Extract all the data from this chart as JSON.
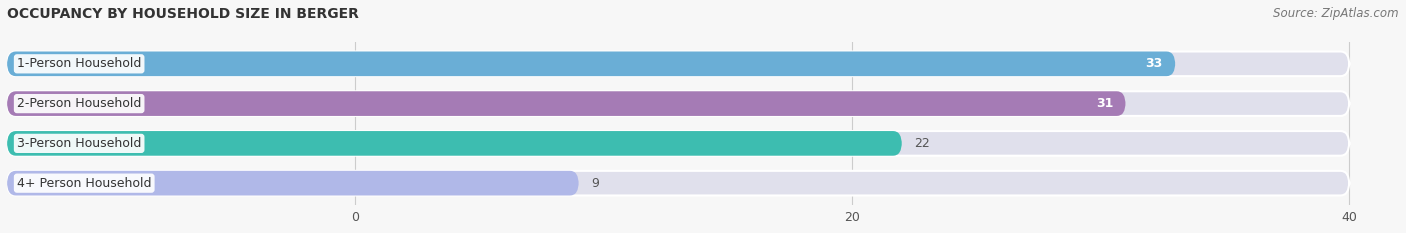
{
  "title": "OCCUPANCY BY HOUSEHOLD SIZE IN BERGER",
  "source": "Source: ZipAtlas.com",
  "categories": [
    "1-Person Household",
    "2-Person Household",
    "3-Person Household",
    "4+ Person Household"
  ],
  "values": [
    33,
    31,
    22,
    9
  ],
  "bar_colors": [
    "#6aaed6",
    "#a57bb5",
    "#3dbdb0",
    "#b0b8e8"
  ],
  "bar_background_color": "#e0e0ec",
  "xlim_data": [
    -14,
    42
  ],
  "data_xlim": [
    0,
    40
  ],
  "xticks": [
    0,
    20,
    40
  ],
  "background_color": "#f7f7f7",
  "plot_bg_color": "#f7f7f7",
  "title_fontsize": 10,
  "source_fontsize": 8.5,
  "label_fontsize": 9,
  "value_fontsize": 9,
  "bar_height": 0.62
}
